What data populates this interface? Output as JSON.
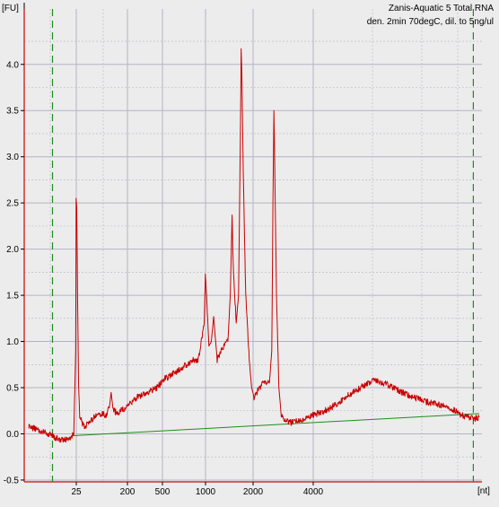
{
  "chart_data": {
    "type": "line",
    "title_lines": [
      "Zanis-Aquatic 5 Total RNA",
      "den. 2min 70degC, dil. to 5ng/ul"
    ],
    "ylabel": "[FU]",
    "xlabel": "[nt]",
    "ylim": [
      -0.52,
      4.6
    ],
    "y_ticks": [
      "-0.5",
      "0.0",
      "0.5",
      "1.0",
      "1.5",
      "2.0",
      "2.5",
      "3.0",
      "3.5",
      "4.0"
    ],
    "x_ticks": [
      "25",
      "200",
      "500",
      "1000",
      "2000",
      "4000"
    ],
    "grid": true,
    "colors": {
      "electropherogram": "#c80000",
      "baseline": "#1e8c1e",
      "markers": "#1e8c1e",
      "axes": "#d03030",
      "background": "#ececec"
    },
    "series": [
      {
        "values": [
          [
            0,
            0.08
          ],
          [
            8,
            0.05
          ],
          [
            15,
            0.0
          ],
          [
            20,
            -0.02
          ],
          [
            25,
            -0.06
          ],
          [
            30,
            -0.07
          ],
          [
            35,
            -0.04
          ],
          [
            38,
            -0.01
          ],
          [
            39.6,
            0.9
          ],
          [
            40,
            2.55
          ],
          [
            40.5,
            2.45
          ],
          [
            41.2,
            1.5
          ],
          [
            42,
            0.55
          ],
          [
            43,
            0.2
          ],
          [
            46,
            0.08
          ],
          [
            50,
            0.1
          ],
          [
            55,
            0.18
          ],
          [
            60,
            0.22
          ],
          [
            65,
            0.2
          ],
          [
            68,
            0.28
          ],
          [
            69.5,
            0.45
          ],
          [
            71,
            0.28
          ],
          [
            74,
            0.22
          ],
          [
            78,
            0.25
          ],
          [
            85,
            0.32
          ],
          [
            92,
            0.4
          ],
          [
            100,
            0.45
          ],
          [
            108,
            0.5
          ],
          [
            115,
            0.6
          ],
          [
            122,
            0.65
          ],
          [
            130,
            0.72
          ],
          [
            138,
            0.8
          ],
          [
            143,
            0.8
          ],
          [
            148,
            1.2
          ],
          [
            149,
            1.73
          ],
          [
            150,
            1.5
          ],
          [
            152,
            0.95
          ],
          [
            154,
            1.0
          ],
          [
            156,
            1.27
          ],
          [
            157,
            1.1
          ],
          [
            159,
            0.8
          ],
          [
            162,
            0.9
          ],
          [
            168,
            1.0
          ],
          [
            170,
            1.5
          ],
          [
            171.5,
            2.37
          ],
          [
            172.5,
            1.8
          ],
          [
            175,
            1.2
          ],
          [
            177,
            1.5
          ],
          [
            178.5,
            3.2
          ],
          [
            179.2,
            4.17
          ],
          [
            179.8,
            3.9
          ],
          [
            181,
            2.8
          ],
          [
            183,
            1.5
          ],
          [
            186,
            0.8
          ],
          [
            188,
            0.5
          ],
          [
            190,
            0.4
          ],
          [
            194,
            0.48
          ],
          [
            198,
            0.55
          ],
          [
            203,
            0.55
          ],
          [
            205,
            0.9
          ],
          [
            206,
            2.5
          ],
          [
            206.8,
            3.5
          ],
          [
            207.5,
            2.9
          ],
          [
            209,
            1.5
          ],
          [
            211,
            0.5
          ],
          [
            213,
            0.2
          ],
          [
            216,
            0.14
          ],
          [
            222,
            0.12
          ],
          [
            230,
            0.15
          ],
          [
            240,
            0.2
          ],
          [
            250,
            0.25
          ],
          [
            260,
            0.32
          ],
          [
            270,
            0.42
          ],
          [
            280,
            0.5
          ],
          [
            290,
            0.58
          ],
          [
            300,
            0.55
          ],
          [
            310,
            0.48
          ],
          [
            320,
            0.42
          ],
          [
            330,
            0.37
          ],
          [
            340,
            0.33
          ],
          [
            350,
            0.3
          ],
          [
            355,
            0.27
          ],
          [
            360,
            0.25
          ],
          [
            365,
            0.2
          ],
          [
            370,
            0.18
          ],
          [
            375,
            0.16
          ],
          [
            380,
            0.18
          ]
        ]
      }
    ],
    "baseline": [
      [
        0,
        -0.05
      ],
      [
        380,
        0.22
      ]
    ],
    "markers": [
      14,
      375
    ]
  }
}
